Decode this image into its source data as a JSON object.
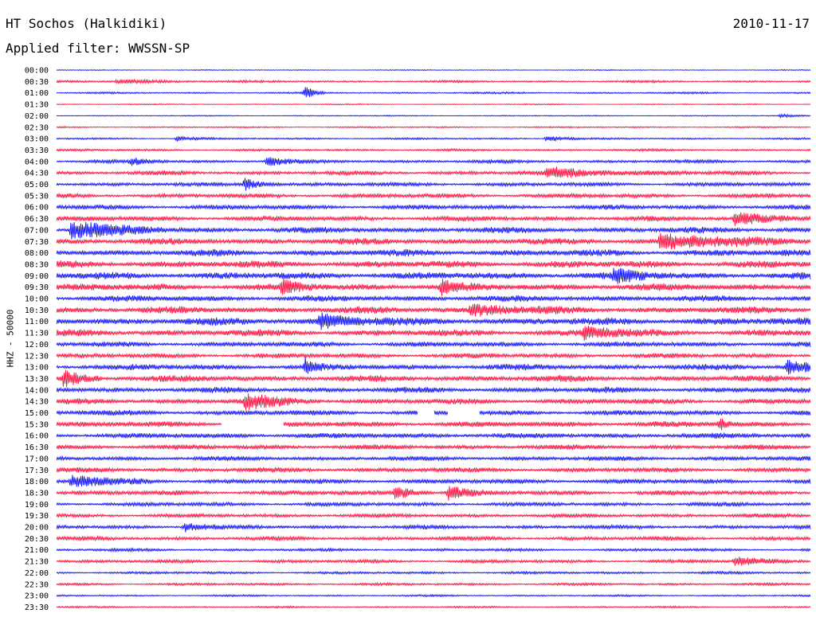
{
  "header": {
    "station": "HT Sochos (Halkidiki)",
    "date": "2010-11-17",
    "filter": "Applied filter: WWSSN-SP"
  },
  "chart_data": {
    "type": "line",
    "title": "HT Sochos (Halkidiki)",
    "subtitle": "Applied filter: WWSSN-SP",
    "date": "2010-11-17",
    "ylabel": "HHZ - 50000",
    "row_labels": [
      "00:00",
      "00:30",
      "01:00",
      "01:30",
      "02:00",
      "02:30",
      "03:00",
      "03:30",
      "04:00",
      "04:30",
      "05:00",
      "05:30",
      "06:00",
      "06:30",
      "07:00",
      "07:30",
      "08:00",
      "08:30",
      "09:00",
      "09:30",
      "10:00",
      "10:30",
      "11:00",
      "11:30",
      "12:00",
      "12:30",
      "13:00",
      "13:30",
      "14:00",
      "14:30",
      "15:00",
      "15:30",
      "16:00",
      "16:30",
      "17:00",
      "17:30",
      "18:00",
      "18:30",
      "19:00",
      "19:30",
      "20:00",
      "20:30",
      "21:00",
      "21:30",
      "22:00",
      "22:30",
      "23:00",
      "23:30"
    ],
    "colors": [
      "#0000ff",
      "#ff0033"
    ],
    "noise_level": [
      0.5,
      1.2,
      1,
      0.6,
      0.6,
      0.8,
      1,
      1.3,
      1.8,
      2.2,
      2.2,
      2.4,
      2.6,
      2.8,
      3.2,
      3.4,
      3.6,
      3.8,
      3.8,
      3.8,
      3.2,
      3.6,
      4,
      3.6,
      2.8,
      2.6,
      3.2,
      3.4,
      3,
      3,
      2.8,
      3,
      2.8,
      2.6,
      2.4,
      2.6,
      2.6,
      2.6,
      2.2,
      2.2,
      2.2,
      2.2,
      1.6,
      1.8,
      1.4,
      1.4,
      1,
      1
    ],
    "events": [
      {
        "row": 1,
        "time": 0.08,
        "width": 0.07,
        "amp": 2
      },
      {
        "row": 2,
        "time": 0.33,
        "width": 0.01,
        "amp": 8
      },
      {
        "row": 4,
        "time": 0.96,
        "width": 0.02,
        "amp": 2
      },
      {
        "row": 6,
        "time": 0.16,
        "width": 0.02,
        "amp": 3
      },
      {
        "row": 6,
        "time": 0.65,
        "width": 0.02,
        "amp": 4
      },
      {
        "row": 8,
        "time": 0.1,
        "width": 0.02,
        "amp": 4
      },
      {
        "row": 8,
        "time": 0.28,
        "width": 0.02,
        "amp": 6
      },
      {
        "row": 9,
        "time": 0.65,
        "width": 0.08,
        "amp": 6
      },
      {
        "row": 10,
        "time": 0.25,
        "width": 0.02,
        "amp": 7
      },
      {
        "row": 13,
        "time": 0.9,
        "width": 0.05,
        "amp": 7
      },
      {
        "row": 14,
        "time": 0.02,
        "width": 0.05,
        "amp": 12
      },
      {
        "row": 15,
        "time": 0.8,
        "width": 0.1,
        "amp": 8
      },
      {
        "row": 18,
        "time": 0.74,
        "width": 0.03,
        "amp": 8
      },
      {
        "row": 19,
        "time": 0.3,
        "width": 0.02,
        "amp": 8
      },
      {
        "row": 19,
        "time": 0.51,
        "width": 0.02,
        "amp": 8
      },
      {
        "row": 21,
        "time": 0.55,
        "width": 0.05,
        "amp": 7
      },
      {
        "row": 22,
        "time": 0.35,
        "width": 0.04,
        "amp": 9
      },
      {
        "row": 23,
        "time": 0.7,
        "width": 0.04,
        "amp": 7
      },
      {
        "row": 26,
        "time": 0.33,
        "width": 0.01,
        "amp": 10
      },
      {
        "row": 26,
        "time": 0.97,
        "width": 0.03,
        "amp": 8
      },
      {
        "row": 27,
        "time": 0.01,
        "width": 0.02,
        "amp": 10
      },
      {
        "row": 29,
        "time": 0.25,
        "width": 0.04,
        "amp": 9
      },
      {
        "row": 31,
        "time": 0.88,
        "width": 0.01,
        "amp": 7
      },
      {
        "row": 36,
        "time": 0.02,
        "width": 0.04,
        "amp": 8
      },
      {
        "row": 37,
        "time": 0.45,
        "width": 0.02,
        "amp": 9
      },
      {
        "row": 37,
        "time": 0.52,
        "width": 0.02,
        "amp": 9
      },
      {
        "row": 40,
        "time": 0.17,
        "width": 0.02,
        "amp": 6
      },
      {
        "row": 43,
        "time": 0.9,
        "width": 0.04,
        "amp": 5
      }
    ],
    "gaps": [
      {
        "row": 30,
        "start": 0.48,
        "end": 0.5
      },
      {
        "row": 30,
        "start": 0.52,
        "end": 0.56
      },
      {
        "row": 31,
        "start": 0.22,
        "end": 0.3
      }
    ]
  }
}
